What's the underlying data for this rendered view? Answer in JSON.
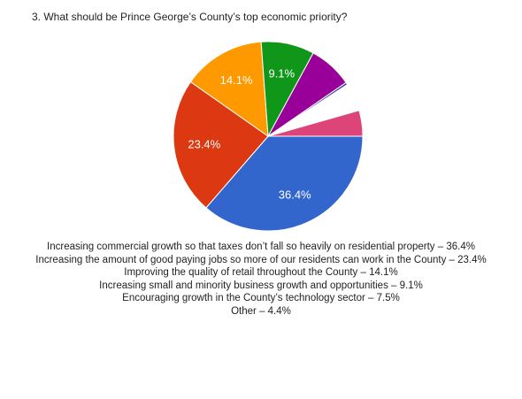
{
  "chart_data": {
    "type": "pie",
    "title": "3. What should be Prince George’s County’s top economic priority?",
    "slices": [
      {
        "label": "Increasing commercial growth so that taxes don’t fall so heavily on residential property",
        "value": 36.4,
        "color": "#3366cc",
        "display": "36.4%"
      },
      {
        "label": "Increasing the amount of good paying jobs so more of our residents can work in the County",
        "value": 23.4,
        "color": "#dc3912",
        "display": "23.4%"
      },
      {
        "label": "Improving the quality of retail throughout the County",
        "value": 14.1,
        "color": "#ff9900",
        "display": "14.1%"
      },
      {
        "label": "Increasing small and minority business growth and opportunities",
        "value": 9.1,
        "color": "#109618",
        "display": "9.1%"
      },
      {
        "label": "Encouraging growth in the County’s technology sector",
        "value": 7.5,
        "color": "#990099",
        "display": ""
      },
      {
        "label": "",
        "value": 0.4,
        "color": "#3b3eac",
        "display": ""
      },
      {
        "label": "",
        "value": 0.8,
        "color": "#ffffff",
        "display": ""
      },
      {
        "label": "",
        "value": 4.0,
        "color": "#ffffff",
        "display": ""
      },
      {
        "label": "Other",
        "value": 4.4,
        "color": "#dd4477",
        "display": ""
      }
    ],
    "legend_lines": [
      "Increasing commercial growth so that taxes don’t fall so heavily on residential property – 36.4%",
      "Increasing the amount of good paying jobs so more of our residents can work in the County – 23.4%",
      "Improving the quality of retail throughout the County – 14.1%",
      "Increasing small and minority business growth and opportunities – 9.1%",
      "Encouraging growth in the County’s technology sector – 7.5%",
      "Other – 4.4%"
    ],
    "legend_position": "bottom"
  }
}
